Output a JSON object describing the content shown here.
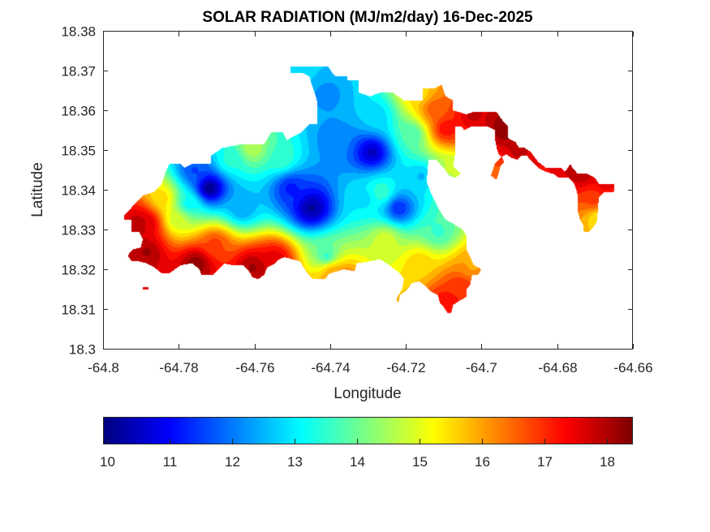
{
  "chart_data": {
    "type": "heatmap",
    "subtype": "filled-contour-map",
    "title": "SOLAR RADIATION (MJ/m2/day) 16-Dec-2025",
    "xlabel": "Longitude",
    "ylabel": "Latitude",
    "xlim": [
      -64.8,
      -64.66
    ],
    "ylim": [
      18.3,
      18.38
    ],
    "xticks": [
      -64.8,
      -64.78,
      -64.76,
      -64.74,
      -64.72,
      -64.7,
      -64.68,
      -64.66
    ],
    "xtick_labels": [
      "-64.8",
      "-64.78",
      "-64.76",
      "-64.74",
      "-64.72",
      "-64.7",
      "-64.68",
      "-64.66"
    ],
    "yticks": [
      18.3,
      18.31,
      18.32,
      18.33,
      18.34,
      18.35,
      18.36,
      18.37,
      18.38
    ],
    "ytick_labels": [
      "18.3",
      "18.31",
      "18.32",
      "18.33",
      "18.34",
      "18.35",
      "18.36",
      "18.37",
      "18.38"
    ],
    "grid": false,
    "colormap": "jet",
    "colorbar": {
      "location": "bottom",
      "range": [
        9.93,
        18.4
      ],
      "ticks": [
        10,
        11,
        12,
        13,
        14,
        15,
        16,
        17,
        18
      ],
      "tick_labels": [
        "10",
        "11",
        "12",
        "13",
        "14",
        "15",
        "16",
        "17",
        "18"
      ]
    },
    "contour_levels": 25,
    "field_samples": [
      {
        "lon": -64.772,
        "lat": 18.3405,
        "value": 10.0
      },
      {
        "lon": -64.745,
        "lat": 18.3355,
        "value": 10.2
      },
      {
        "lon": -64.729,
        "lat": 18.3495,
        "value": 10.5
      },
      {
        "lon": -64.722,
        "lat": 18.3355,
        "value": 11.3
      },
      {
        "lon": -64.7505,
        "lat": 18.3405,
        "value": 11.2
      },
      {
        "lon": -64.776,
        "lat": 18.345,
        "value": 11.6
      },
      {
        "lon": -64.7635,
        "lat": 18.3355,
        "value": 12.3
      },
      {
        "lon": -64.739,
        "lat": 18.3525,
        "value": 12.1
      },
      {
        "lon": -64.741,
        "lat": 18.364,
        "value": 12.2
      },
      {
        "lon": -64.728,
        "lat": 18.3585,
        "value": 12.8
      },
      {
        "lon": -64.731,
        "lat": 18.338,
        "value": 12.9
      },
      {
        "lon": -64.716,
        "lat": 18.3435,
        "value": 12.6
      },
      {
        "lon": -64.748,
        "lat": 18.3705,
        "value": 12.8
      },
      {
        "lon": -64.753,
        "lat": 18.348,
        "value": 13.6
      },
      {
        "lon": -64.7665,
        "lat": 18.3475,
        "value": 13.4
      },
      {
        "lon": -64.7185,
        "lat": 18.354,
        "value": 13.7
      },
      {
        "lon": -64.7775,
        "lat": 18.3365,
        "value": 13.2
      },
      {
        "lon": -64.7265,
        "lat": 18.3395,
        "value": 13.6
      },
      {
        "lon": -64.7115,
        "lat": 18.3295,
        "value": 13.6
      },
      {
        "lon": -64.741,
        "lat": 18.3235,
        "value": 13.6
      },
      {
        "lon": -64.7605,
        "lat": 18.3505,
        "value": 14.6
      },
      {
        "lon": -64.7805,
        "lat": 18.3325,
        "value": 14.8
      },
      {
        "lon": -64.7255,
        "lat": 18.3275,
        "value": 14.9
      },
      {
        "lon": -64.7085,
        "lat": 18.3455,
        "value": 14.7
      },
      {
        "lon": -64.7165,
        "lat": 18.3645,
        "value": 15.5
      },
      {
        "lon": -64.7845,
        "lat": 18.338,
        "value": 15.5
      },
      {
        "lon": -64.7165,
        "lat": 18.3215,
        "value": 15.6
      },
      {
        "lon": -64.7395,
        "lat": 18.3195,
        "value": 15.8
      },
      {
        "lon": -64.7025,
        "lat": 18.321,
        "value": 16.0
      },
      {
        "lon": -64.7125,
        "lat": 18.3605,
        "value": 16.6
      },
      {
        "lon": -64.7705,
        "lat": 18.3265,
        "value": 16.8
      },
      {
        "lon": -64.7095,
        "lat": 18.3555,
        "value": 17.3
      },
      {
        "lon": -64.6695,
        "lat": 18.333,
        "value": 15.4
      },
      {
        "lon": -64.6705,
        "lat": 18.3375,
        "value": 16.8
      },
      {
        "lon": -64.7055,
        "lat": 18.3155,
        "value": 17.0
      },
      {
        "lon": -64.7095,
        "lat": 18.3115,
        "value": 17.3
      },
      {
        "lon": -64.7375,
        "lat": 18.3175,
        "value": 17.1
      },
      {
        "lon": -64.7885,
        "lat": 18.3315,
        "value": 17.7
      },
      {
        "lon": -64.7545,
        "lat": 18.3225,
        "value": 17.6
      },
      {
        "lon": -64.6675,
        "lat": 18.3415,
        "value": 17.5
      },
      {
        "lon": -64.7025,
        "lat": 18.359,
        "value": 17.8
      },
      {
        "lon": -64.6905,
        "lat": 18.3495,
        "value": 17.8
      },
      {
        "lon": -64.6735,
        "lat": 18.3445,
        "value": 18.0
      },
      {
        "lon": -64.6935,
        "lat": 18.3555,
        "value": 18.4
      },
      {
        "lon": -64.7755,
        "lat": 18.3215,
        "value": 18.3
      },
      {
        "lon": -64.7885,
        "lat": 18.3245,
        "value": 18.1
      },
      {
        "lon": -64.7905,
        "lat": 18.3315,
        "value": 18.0
      },
      {
        "lon": -64.7605,
        "lat": 18.3205,
        "value": 18.1
      },
      {
        "lon": -64.6935,
        "lat": 18.344,
        "value": 16.5
      }
    ],
    "land_outline": [
      [
        -64.7945,
        18.3335
      ],
      [
        -64.7905,
        18.3375
      ],
      [
        -64.7895,
        18.3385
      ],
      [
        -64.7865,
        18.3395
      ],
      [
        -64.7855,
        18.3405
      ],
      [
        -64.7845,
        18.3415
      ],
      [
        -64.7835,
        18.3445
      ],
      [
        -64.7825,
        18.3465
      ],
      [
        -64.7795,
        18.3465
      ],
      [
        -64.7785,
        18.3455
      ],
      [
        -64.7765,
        18.3465
      ],
      [
        -64.7715,
        18.3465
      ],
      [
        -64.7715,
        18.3485
      ],
      [
        -64.7685,
        18.3505
      ],
      [
        -64.7635,
        18.3515
      ],
      [
        -64.7575,
        18.3515
      ],
      [
        -64.7555,
        18.3545
      ],
      [
        -64.7525,
        18.3545
      ],
      [
        -64.7515,
        18.3525
      ],
      [
        -64.7495,
        18.3535
      ],
      [
        -64.7475,
        18.3545
      ],
      [
        -64.7455,
        18.3565
      ],
      [
        -64.7435,
        18.3565
      ],
      [
        -64.7435,
        18.3625
      ],
      [
        -64.7455,
        18.3685
      ],
      [
        -64.7475,
        18.3695
      ],
      [
        -64.7505,
        18.3695
      ],
      [
        -64.7505,
        18.371
      ],
      [
        -64.7405,
        18.371
      ],
      [
        -64.7395,
        18.3695
      ],
      [
        -64.7385,
        18.3685
      ],
      [
        -64.7355,
        18.3685
      ],
      [
        -64.7355,
        18.3675
      ],
      [
        -64.7325,
        18.3675
      ],
      [
        -64.7325,
        18.3645
      ],
      [
        -64.7295,
        18.3635
      ],
      [
        -64.7265,
        18.3645
      ],
      [
        -64.7235,
        18.3645
      ],
      [
        -64.7205,
        18.3625
      ],
      [
        -64.7185,
        18.3625
      ],
      [
        -64.7155,
        18.3625
      ],
      [
        -64.7155,
        18.3655
      ],
      [
        -64.7125,
        18.3655
      ],
      [
        -64.7105,
        18.3665
      ],
      [
        -64.7095,
        18.3635
      ],
      [
        -64.7075,
        18.3625
      ],
      [
        -64.7075,
        18.36
      ],
      [
        -64.704,
        18.359
      ],
      [
        -64.7025,
        18.3595
      ],
      [
        -64.696,
        18.3595
      ],
      [
        -64.6945,
        18.3575
      ],
      [
        -64.693,
        18.356
      ],
      [
        -64.693,
        18.353
      ],
      [
        -64.691,
        18.352
      ],
      [
        -64.69,
        18.3505
      ],
      [
        -64.6885,
        18.3505
      ],
      [
        -64.687,
        18.3495
      ],
      [
        -64.685,
        18.347
      ],
      [
        -64.683,
        18.3455
      ],
      [
        -64.679,
        18.3455
      ],
      [
        -64.678,
        18.3445
      ],
      [
        -64.6765,
        18.3465
      ],
      [
        -64.676,
        18.3455
      ],
      [
        -64.6745,
        18.344
      ],
      [
        -64.672,
        18.344
      ],
      [
        -64.67,
        18.343
      ],
      [
        -64.669,
        18.3415
      ],
      [
        -64.665,
        18.3415
      ],
      [
        -64.665,
        18.3395
      ],
      [
        -64.6675,
        18.3395
      ],
      [
        -64.669,
        18.338
      ],
      [
        -64.6695,
        18.332
      ],
      [
        -64.6705,
        18.3305
      ],
      [
        -64.6715,
        18.3295
      ],
      [
        -64.673,
        18.3295
      ],
      [
        -64.673,
        18.331
      ],
      [
        -64.674,
        18.3325
      ],
      [
        -64.6745,
        18.3345
      ],
      [
        -64.6745,
        18.3385
      ],
      [
        -64.6755,
        18.3415
      ],
      [
        -64.677,
        18.343
      ],
      [
        -64.6795,
        18.343
      ],
      [
        -64.681,
        18.344
      ],
      [
        -64.683,
        18.3445
      ],
      [
        -64.685,
        18.3455
      ],
      [
        -64.687,
        18.3475
      ],
      [
        -64.688,
        18.3485
      ],
      [
        -64.6895,
        18.3485
      ],
      [
        -64.6905,
        18.3475
      ],
      [
        -64.692,
        18.348
      ],
      [
        -64.6935,
        18.349
      ],
      [
        -64.695,
        18.348
      ],
      [
        -64.6965,
        18.3465
      ],
      [
        -64.6975,
        18.3435
      ],
      [
        -64.696,
        18.3425
      ],
      [
        -64.6955,
        18.344
      ],
      [
        -64.695,
        18.346
      ],
      [
        -64.694,
        18.347
      ],
      [
        -64.6945,
        18.348
      ],
      [
        -64.6955,
        18.349
      ],
      [
        -64.696,
        18.3505
      ],
      [
        -64.6965,
        18.353
      ],
      [
        -64.6965,
        18.355
      ],
      [
        -64.6985,
        18.356
      ],
      [
        -64.7025,
        18.356
      ],
      [
        -64.7045,
        18.355
      ],
      [
        -64.7055,
        18.356
      ],
      [
        -64.707,
        18.356
      ],
      [
        -64.707,
        18.353
      ],
      [
        -64.707,
        18.349
      ],
      [
        -64.7075,
        18.346
      ],
      [
        -64.7065,
        18.345
      ],
      [
        -64.7055,
        18.344
      ],
      [
        -64.707,
        18.343
      ],
      [
        -64.7085,
        18.3435
      ],
      [
        -64.71,
        18.3455
      ],
      [
        -64.712,
        18.3475
      ],
      [
        -64.714,
        18.3475
      ],
      [
        -64.7145,
        18.342
      ],
      [
        -64.7135,
        18.3395
      ],
      [
        -64.7125,
        18.3375
      ],
      [
        -64.7115,
        18.3355
      ],
      [
        -64.7105,
        18.334
      ],
      [
        -64.7095,
        18.3325
      ],
      [
        -64.7075,
        18.3315
      ],
      [
        -64.705,
        18.33
      ],
      [
        -64.704,
        18.3285
      ],
      [
        -64.704,
        18.325
      ],
      [
        -64.702,
        18.321
      ],
      [
        -64.7,
        18.32
      ],
      [
        -64.701,
        18.3185
      ],
      [
        -64.7025,
        18.3185
      ],
      [
        -64.703,
        18.316
      ],
      [
        -64.704,
        18.315
      ],
      [
        -64.704,
        18.313
      ],
      [
        -64.706,
        18.312
      ],
      [
        -64.7075,
        18.311
      ],
      [
        -64.708,
        18.309
      ],
      [
        -64.709,
        18.309
      ],
      [
        -64.71,
        18.3105
      ],
      [
        -64.711,
        18.3115
      ],
      [
        -64.7115,
        18.3135
      ],
      [
        -64.7135,
        18.3145
      ],
      [
        -64.7145,
        18.3155
      ],
      [
        -64.7165,
        18.317
      ],
      [
        -64.7185,
        18.3165
      ],
      [
        -64.7195,
        18.315
      ],
      [
        -64.7215,
        18.3135
      ],
      [
        -64.722,
        18.3115
      ],
      [
        -64.7225,
        18.3125
      ],
      [
        -64.721,
        18.315
      ],
      [
        -64.7205,
        18.3175
      ],
      [
        -64.7215,
        18.319
      ],
      [
        -64.723,
        18.32
      ],
      [
        -64.725,
        18.3215
      ],
      [
        -64.727,
        18.3225
      ],
      [
        -64.7295,
        18.322
      ],
      [
        -64.733,
        18.3215
      ],
      [
        -64.7335,
        18.3195
      ],
      [
        -64.7365,
        18.32
      ],
      [
        -64.738,
        18.3195
      ],
      [
        -64.74,
        18.319
      ],
      [
        -64.7415,
        18.3175
      ],
      [
        -64.7445,
        18.3175
      ],
      [
        -64.746,
        18.319
      ],
      [
        -64.748,
        18.322
      ],
      [
        -64.75,
        18.3225
      ],
      [
        -64.752,
        18.323
      ],
      [
        -64.7535,
        18.3225
      ],
      [
        -64.7545,
        18.3215
      ],
      [
        -64.7565,
        18.3205
      ],
      [
        -64.7575,
        18.3185
      ],
      [
        -64.759,
        18.3175
      ],
      [
        -64.7605,
        18.318
      ],
      [
        -64.7615,
        18.3195
      ],
      [
        -64.763,
        18.321
      ],
      [
        -64.766,
        18.321
      ],
      [
        -64.768,
        18.3215
      ],
      [
        -64.7695,
        18.32
      ],
      [
        -64.771,
        18.3185
      ],
      [
        -64.774,
        18.3185
      ],
      [
        -64.7745,
        18.32
      ],
      [
        -64.7765,
        18.3215
      ],
      [
        -64.7795,
        18.321
      ],
      [
        -64.781,
        18.32
      ],
      [
        -64.7825,
        18.319
      ],
      [
        -64.7845,
        18.319
      ],
      [
        -64.7865,
        18.3205
      ],
      [
        -64.7885,
        18.3215
      ],
      [
        -64.7905,
        18.322
      ],
      [
        -64.7925,
        18.322
      ],
      [
        -64.7935,
        18.3235
      ],
      [
        -64.792,
        18.325
      ],
      [
        -64.79,
        18.3255
      ],
      [
        -64.7895,
        18.3275
      ],
      [
        -64.7905,
        18.3295
      ],
      [
        -64.7925,
        18.3295
      ],
      [
        -64.7925,
        18.3325
      ],
      [
        -64.7945,
        18.3325
      ]
    ],
    "islets": [
      [
        [
          -64.7895,
          18.3155
        ],
        [
          -64.788,
          18.3155
        ],
        [
          -64.788,
          18.3148
        ],
        [
          -64.7895,
          18.3148
        ]
      ]
    ]
  }
}
